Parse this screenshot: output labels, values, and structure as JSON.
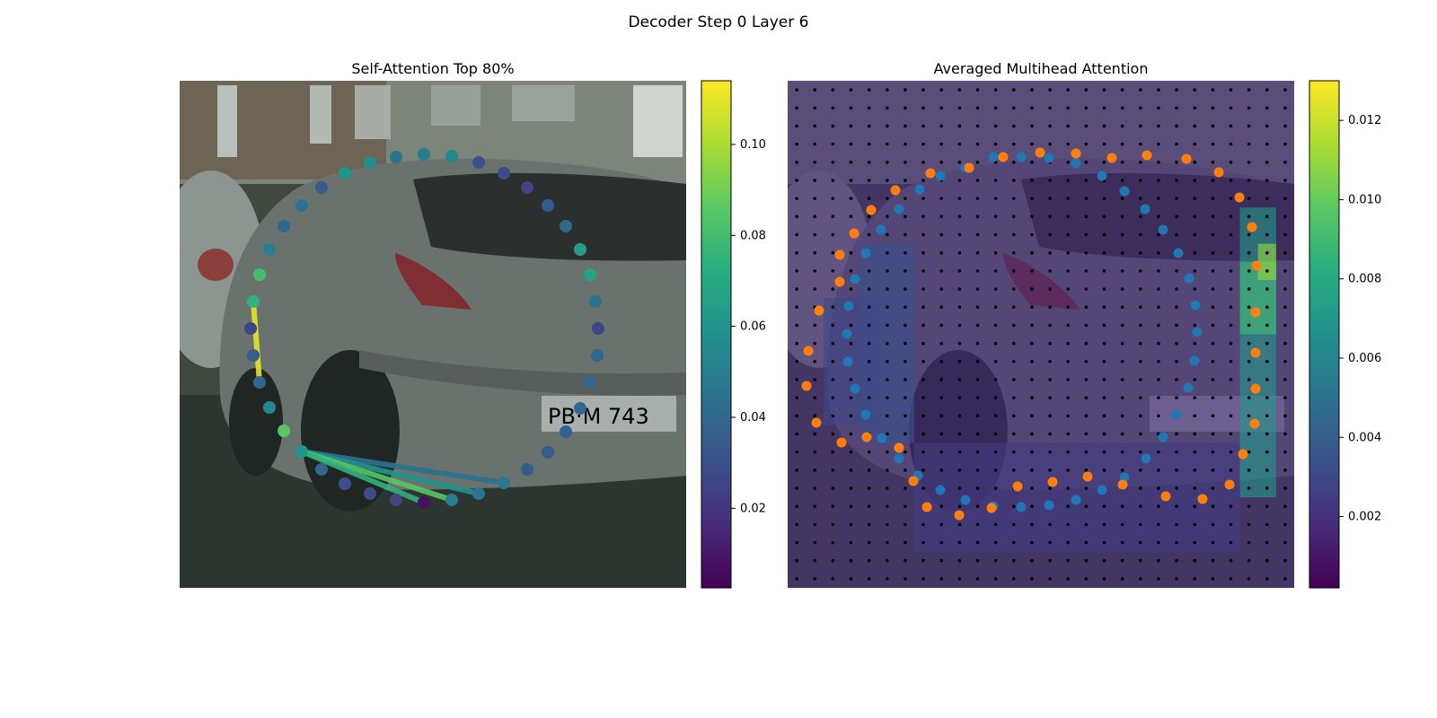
{
  "suptitle": "Decoder Step 0 Layer 6",
  "chart_data": [
    {
      "type": "scatter",
      "title": "Self-Attention Top 80%",
      "background": "street photo of a grey hatchback car (rear three-quarter view) parked on a street",
      "colormap": "viridis",
      "colorbar": {
        "min": 0.0025,
        "max": 0.114,
        "ticks": [
          "0.02",
          "0.04",
          "0.06",
          "0.08",
          "0.10"
        ]
      },
      "axes": "off",
      "points": [
        {
          "x": 441,
          "y": 175,
          "v": 0.045
        },
        {
          "x": 472,
          "y": 172,
          "v": 0.05
        },
        {
          "x": 503,
          "y": 174,
          "v": 0.055
        },
        {
          "x": 533,
          "y": 181,
          "v": 0.03
        },
        {
          "x": 561,
          "y": 193,
          "v": 0.028
        },
        {
          "x": 587,
          "y": 209,
          "v": 0.025
        },
        {
          "x": 610,
          "y": 229,
          "v": 0.035
        },
        {
          "x": 630,
          "y": 252,
          "v": 0.04
        },
        {
          "x": 646,
          "y": 278,
          "v": 0.065
        },
        {
          "x": 657,
          "y": 306,
          "v": 0.068
        },
        {
          "x": 663,
          "y": 336,
          "v": 0.045
        },
        {
          "x": 666,
          "y": 366,
          "v": 0.025
        },
        {
          "x": 665,
          "y": 396,
          "v": 0.04
        },
        {
          "x": 657,
          "y": 426,
          "v": 0.04
        },
        {
          "x": 646,
          "y": 455,
          "v": 0.04
        },
        {
          "x": 630,
          "y": 481,
          "v": 0.038
        },
        {
          "x": 610,
          "y": 504,
          "v": 0.035
        },
        {
          "x": 587,
          "y": 523,
          "v": 0.035
        },
        {
          "x": 561,
          "y": 538,
          "v": 0.048
        },
        {
          "x": 533,
          "y": 550,
          "v": 0.045
        },
        {
          "x": 503,
          "y": 557,
          "v": 0.05
        },
        {
          "x": 472,
          "y": 560,
          "v": 0.008
        },
        {
          "x": 441,
          "y": 557,
          "v": 0.025
        },
        {
          "x": 412,
          "y": 550,
          "v": 0.028
        },
        {
          "x": 384,
          "y": 539,
          "v": 0.03
        },
        {
          "x": 358,
          "y": 523,
          "v": 0.04
        },
        {
          "x": 336,
          "y": 503,
          "v": 0.06
        },
        {
          "x": 316,
          "y": 480,
          "v": 0.085
        },
        {
          "x": 300,
          "y": 454,
          "v": 0.055
        },
        {
          "x": 289,
          "y": 426,
          "v": 0.04
        },
        {
          "x": 282,
          "y": 396,
          "v": 0.035
        },
        {
          "x": 279,
          "y": 366,
          "v": 0.025
        },
        {
          "x": 282,
          "y": 336,
          "v": 0.075
        },
        {
          "x": 289,
          "y": 306,
          "v": 0.08
        },
        {
          "x": 300,
          "y": 278,
          "v": 0.05
        },
        {
          "x": 316,
          "y": 252,
          "v": 0.04
        },
        {
          "x": 336,
          "y": 229,
          "v": 0.045
        },
        {
          "x": 358,
          "y": 209,
          "v": 0.035
        },
        {
          "x": 384,
          "y": 193,
          "v": 0.06
        },
        {
          "x": 412,
          "y": 181,
          "v": 0.058
        }
      ],
      "links": [
        {
          "from": [
            282,
            336
          ],
          "to": [
            289,
            426
          ],
          "v": 0.11
        },
        {
          "from": [
            336,
            503
          ],
          "to": [
            561,
            538
          ],
          "v": 0.045
        },
        {
          "from": [
            336,
            503
          ],
          "to": [
            533,
            550
          ],
          "v": 0.06
        },
        {
          "from": [
            336,
            503
          ],
          "to": [
            503,
            557
          ],
          "v": 0.085
        },
        {
          "from": [
            336,
            503
          ],
          "to": [
            472,
            560
          ],
          "v": 0.075
        }
      ]
    },
    {
      "type": "heatmap",
      "title": "Averaged Multihead Attention",
      "background": "same street photo of the grey hatchback car, tinted by the attention heatmap",
      "colormap": "viridis",
      "colorbar": {
        "min": 0.0002,
        "max": 0.013,
        "ticks": [
          "0.002",
          "0.004",
          "0.006",
          "0.008",
          "0.010",
          "0.012"
        ]
      },
      "axes": "off",
      "grid_dots": {
        "rows": 28,
        "cols": 28,
        "color": "#000000"
      },
      "heat_regions": [
        {
          "col_from": 0,
          "col_to": 27,
          "row_from": 0,
          "row_to": 27,
          "v": 0.0018
        },
        {
          "col_from": 4,
          "col_to": 6,
          "row_from": 9,
          "row_to": 19,
          "v": 0.0035
        },
        {
          "col_from": 2,
          "col_to": 4,
          "row_from": 12,
          "row_to": 18,
          "v": 0.003
        },
        {
          "col_from": 7,
          "col_to": 24,
          "row_from": 20,
          "row_to": 25,
          "v": 0.0025
        },
        {
          "col_from": 25,
          "col_to": 26,
          "row_from": 7,
          "row_to": 22,
          "v": 0.007
        },
        {
          "col_from": 25,
          "col_to": 26,
          "row_from": 10,
          "row_to": 13,
          "v": 0.009
        },
        {
          "col_from": 26,
          "col_to": 26,
          "row_from": 9,
          "row_to": 10,
          "v": 0.011
        }
      ],
      "series": [
        {
          "color": "#1f77b4",
          "points": [
            [
              1106,
              175
            ],
            [
              1137,
              175
            ],
            [
              1168,
              176
            ],
            [
              1198,
              182
            ],
            [
              1227,
              196
            ],
            [
              1252,
              213
            ],
            [
              1275,
              233
            ],
            [
              1295,
              256
            ],
            [
              1312,
              282
            ],
            [
              1324,
              310
            ],
            [
              1331,
              340
            ],
            [
              1333,
              370
            ],
            [
              1330,
              402
            ],
            [
              1323,
              432
            ],
            [
              1310,
              462
            ],
            [
              1295,
              487
            ],
            [
              1276,
              511
            ],
            [
              1252,
              532
            ],
            [
              1227,
              546
            ],
            [
              1198,
              557
            ],
            [
              1168,
              563
            ],
            [
              1137,
              565
            ],
            [
              1106,
              564
            ],
            [
              1075,
              557
            ],
            [
              1047,
              546
            ],
            [
              1022,
              530
            ],
            [
              1001,
              511
            ],
            [
              982,
              488
            ],
            [
              964,
              462
            ],
            [
              952,
              433
            ],
            [
              944,
              403
            ],
            [
              943,
              372
            ],
            [
              945,
              341
            ],
            [
              952,
              311
            ],
            [
              964,
              282
            ],
            [
              981,
              256
            ],
            [
              1001,
              233
            ],
            [
              1024,
              211
            ],
            [
              1047,
              196
            ],
            [
              1075,
              187
            ]
          ]
        },
        {
          "color": "#ff7f0e",
          "points": [
            [
              1117,
              175
            ],
            [
              1158,
              170
            ],
            [
              1198,
              171
            ],
            [
              1238,
              176
            ],
            [
              1277,
              173
            ],
            [
              1321,
              177
            ],
            [
              1357,
              192
            ],
            [
              1380,
              220
            ],
            [
              1394,
              253
            ],
            [
              1399,
              296
            ],
            [
              1398,
              348
            ],
            [
              1398,
              393
            ],
            [
              1398,
              433
            ],
            [
              1397,
              472
            ],
            [
              1384,
              506
            ],
            [
              1369,
              540
            ],
            [
              1339,
              556
            ],
            [
              1298,
              553
            ],
            [
              1250,
              540
            ],
            [
              1211,
              531
            ],
            [
              1172,
              537
            ],
            [
              1133,
              542
            ],
            [
              1104,
              566
            ],
            [
              1068,
              574
            ],
            [
              1032,
              565
            ],
            [
              1017,
              536
            ],
            [
              1001,
              499
            ],
            [
              965,
              487
            ],
            [
              937,
              493
            ],
            [
              909,
              471
            ],
            [
              898,
              430
            ],
            [
              900,
              391
            ],
            [
              912,
              346
            ],
            [
              935,
              314
            ],
            [
              935,
              284
            ],
            [
              951,
              260
            ],
            [
              970,
              234
            ],
            [
              997,
              212
            ],
            [
              1036,
              193
            ],
            [
              1079,
              187
            ]
          ]
        }
      ]
    }
  ]
}
